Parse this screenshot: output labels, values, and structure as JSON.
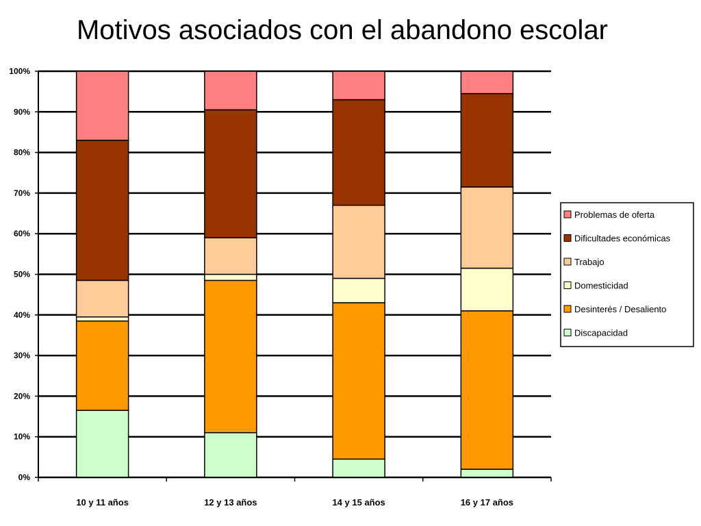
{
  "slide": {
    "title": "Motivos asociados con el abandono escolar"
  },
  "chart_data": {
    "type": "bar",
    "stacked": true,
    "percent": true,
    "title": "",
    "xlabel": "",
    "ylabel": "",
    "ylim": [
      0,
      100
    ],
    "yticks": [
      "0%",
      "10%",
      "20%",
      "30%",
      "40%",
      "50%",
      "60%",
      "70%",
      "80%",
      "90%",
      "100%"
    ],
    "grid": true,
    "legend_position": "right",
    "categories": [
      "10 y 11 años",
      "12 y 13 años",
      "14 y 15 años",
      "16 y 17 años"
    ],
    "series": [
      {
        "name": "Discapacidad",
        "color": "#ccffcc",
        "values": [
          16.5,
          11,
          4.5,
          2
        ]
      },
      {
        "name": "Desinterés / Desaliento",
        "color": "#ff9900",
        "values": [
          22,
          37.5,
          38.5,
          39
        ]
      },
      {
        "name": "Domesticidad",
        "color": "#ffffcc",
        "values": [
          1,
          1.5,
          6,
          10.5
        ]
      },
      {
        "name": "Trabajo",
        "color": "#ffcc99",
        "values": [
          9,
          9,
          18,
          20
        ]
      },
      {
        "name": "Dificultades económicas",
        "color": "#993300",
        "values": [
          34.5,
          31.5,
          26,
          23
        ]
      },
      {
        "name": "Problemas de oferta",
        "color": "#ff8080",
        "values": [
          17,
          9.5,
          7,
          5.5
        ]
      }
    ],
    "legend_order": [
      "Problemas de oferta",
      "Dificultades económicas",
      "Trabajo",
      "Domesticidad",
      "Desinterés / Desaliento",
      "Discapacidad"
    ]
  }
}
